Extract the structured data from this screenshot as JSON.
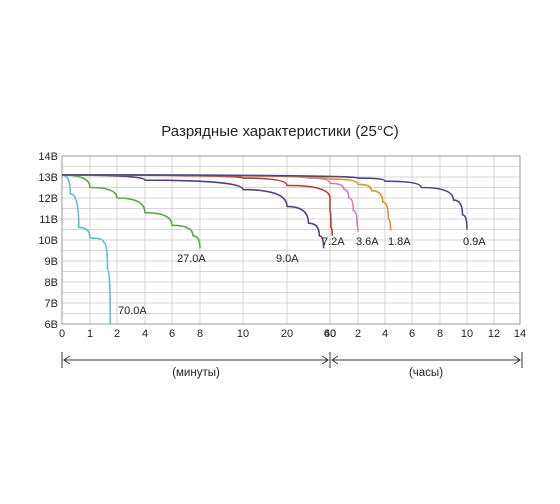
{
  "chart_data": {
    "type": "line",
    "title": "Разрядные характеристики (25°C)",
    "y_tick_labels": [
      "14В",
      "13В",
      "12В",
      "11В",
      "10В",
      "9В",
      "8В",
      "7В",
      "6В"
    ],
    "ylim": [
      6,
      14
    ],
    "x_tick_labels": [
      "0",
      "1",
      "2",
      "4",
      "6",
      "8",
      "10",
      "20",
      "40",
      "60",
      "2",
      "4",
      "6",
      "8",
      "10",
      "12",
      "14"
    ],
    "x_segments": [
      {
        "label": "(минуты)",
        "ticks": [
          "0",
          "1",
          "2",
          "4",
          "6",
          "8",
          "10",
          "20",
          "40",
          "60"
        ]
      },
      {
        "label": "(часы)",
        "ticks": [
          "2",
          "4",
          "6",
          "8",
          "10",
          "12",
          "14"
        ]
      }
    ],
    "grid": true,
    "series": [
      {
        "name": "70.0A",
        "color": "#5bbfd6",
        "points": [
          [
            0,
            13.1
          ],
          [
            0.3,
            12.2
          ],
          [
            0.6,
            10.6
          ],
          [
            1.0,
            10.1
          ],
          [
            1.5,
            9.9
          ],
          [
            1.65,
            8.6
          ],
          [
            1.75,
            6.0
          ]
        ]
      },
      {
        "name": "27.0A",
        "color": "#5aa845",
        "points": [
          [
            0,
            13.1
          ],
          [
            1,
            12.5
          ],
          [
            2,
            12.0
          ],
          [
            4,
            11.3
          ],
          [
            6,
            10.7
          ],
          [
            7.5,
            10.2
          ],
          [
            8,
            9.6
          ]
        ]
      },
      {
        "name": "9.0A",
        "color": "#5a3f7a",
        "points": [
          [
            0,
            13.1
          ],
          [
            4,
            12.85
          ],
          [
            10,
            12.4
          ],
          [
            20,
            11.6
          ],
          [
            30,
            10.8
          ],
          [
            35,
            10.2
          ],
          [
            37,
            9.6
          ]
        ]
      },
      {
        "name": "7.2A",
        "color": "#c0392b",
        "points": [
          [
            0,
            13.1
          ],
          [
            10,
            12.95
          ],
          [
            20,
            12.6
          ],
          [
            40,
            12.0
          ],
          [
            55,
            11.4
          ],
          [
            62,
            10.6
          ],
          [
            65,
            10.2
          ]
        ]
      },
      {
        "name": "3.6A",
        "color": "#d07cc0",
        "points": [
          [
            0,
            13.1
          ],
          [
            30,
            12.95
          ],
          [
            60,
            12.7
          ],
          [
            90,
            12.4
          ],
          [
            100,
            12.0
          ],
          [
            110,
            11.4
          ],
          [
            118,
            10.7
          ],
          [
            120,
            10.4
          ]
        ]
      },
      {
        "name": "1.8A",
        "color": "#e0902a",
        "points": [
          [
            0,
            13.1
          ],
          [
            60,
            12.9
          ],
          [
            120,
            12.65
          ],
          [
            180,
            12.35
          ],
          [
            230,
            11.8
          ],
          [
            255,
            11.0
          ],
          [
            265,
            10.45
          ]
        ]
      },
      {
        "name": "0.9A",
        "color": "#4a4a80",
        "points": [
          [
            0,
            13.1
          ],
          [
            120,
            12.95
          ],
          [
            240,
            12.8
          ],
          [
            400,
            12.5
          ],
          [
            540,
            11.9
          ],
          [
            580,
            11.2
          ],
          [
            600,
            10.5
          ]
        ]
      }
    ]
  }
}
